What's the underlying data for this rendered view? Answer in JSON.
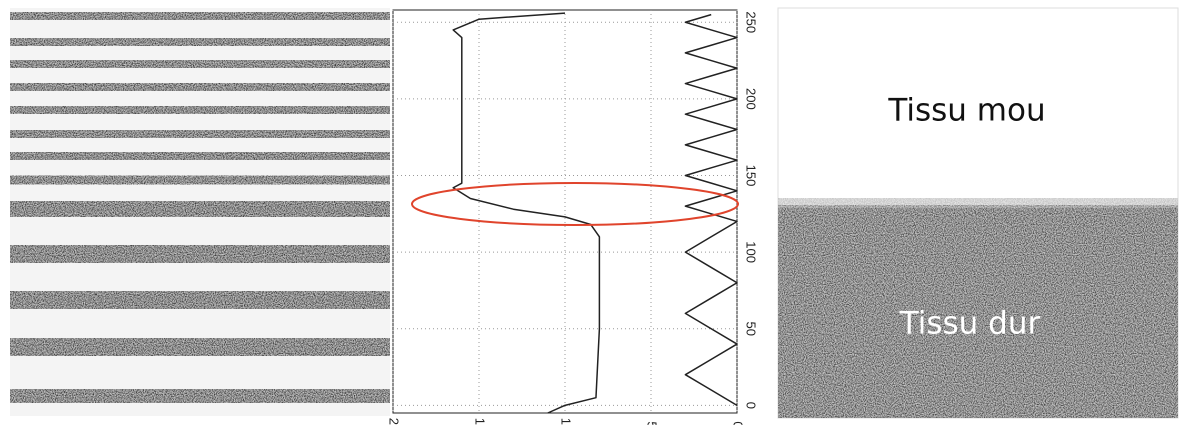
{
  "chart_data": {
    "type": "line",
    "xlim": [
      -5,
      258
    ],
    "xticks": [
      0,
      50,
      100,
      150,
      200,
      250
    ],
    "ylim": [
      20,
      0
    ],
    "yticks": [
      20,
      15,
      10,
      5,
      0
    ],
    "grid": true,
    "series": [
      {
        "color": "#222222",
        "x": [
          -5,
          0,
          5,
          50,
          110,
          118,
          123,
          128,
          135,
          142,
          145,
          200,
          240,
          245,
          252,
          256
        ],
        "values": [
          11,
          10,
          8.2,
          8,
          8,
          8.5,
          10,
          13,
          15.5,
          16.5,
          16,
          16,
          16,
          16.5,
          15,
          10
        ]
      },
      {
        "color": "#222222",
        "x": [
          0,
          10,
          20,
          30,
          40,
          50,
          60,
          70,
          80,
          90,
          100,
          110,
          120,
          125,
          130,
          135,
          140,
          145,
          150,
          155,
          160,
          165,
          170,
          175,
          180,
          185,
          190,
          195,
          200,
          205,
          210,
          215,
          220,
          225,
          230,
          235,
          240,
          245,
          250,
          255
        ],
        "values": [
          0,
          1.5,
          3,
          1.5,
          0,
          1.5,
          3,
          1.5,
          0,
          1.5,
          3,
          1.5,
          0,
          1.5,
          3,
          1.5,
          0,
          1.5,
          3,
          1.5,
          0,
          1.5,
          3,
          1.5,
          0,
          1.5,
          3,
          1.5,
          0,
          1.5,
          3,
          1.5,
          0,
          1.5,
          3,
          1.5,
          0,
          1.5,
          3,
          1.5
        ]
      }
    ],
    "annotations": [
      "Tissu mou",
      "Tissu dur"
    ]
  }
}
